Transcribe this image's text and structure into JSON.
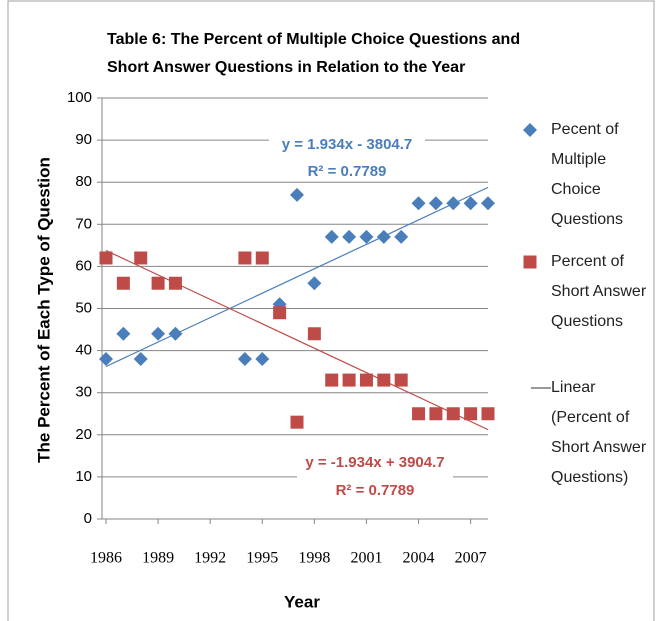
{
  "chart_data": {
    "type": "scatter",
    "title": "Table 6: The Percent of Multiple Choice Questions and Short Answer Questions in Relation to the Year",
    "x_label": "Year",
    "y_label": "The Percent of Each Type of Question",
    "x": [
      1986,
      1987,
      1988,
      1989,
      1990,
      1994,
      1995,
      1996,
      1997,
      1998,
      1999,
      2000,
      2001,
      2002,
      2003,
      2004,
      2005,
      2006,
      2007,
      2008
    ],
    "series": [
      {
        "name": "Pecent of Multiple Choice Questions",
        "color": "#4a7ebb",
        "marker": "diamond",
        "values": [
          38,
          44,
          38,
          44,
          44,
          38,
          38,
          51,
          77,
          56,
          67,
          67,
          67,
          67,
          67,
          75,
          75,
          75,
          75,
          75
        ]
      },
      {
        "name": "Percent of Short Answer Questions",
        "color": "#be4b48",
        "marker": "square",
        "values": [
          62,
          56,
          62,
          56,
          56,
          62,
          62,
          49,
          23,
          44,
          33,
          33,
          33,
          33,
          33,
          25,
          25,
          25,
          25,
          25
        ]
      }
    ],
    "trendlines": [
      {
        "series": 0,
        "color": "#4a7ebb",
        "slope": 1.934,
        "intercept": -3804.7,
        "equation": "y = 1.934x - 3804.7",
        "r2": "R² = 0.7789"
      },
      {
        "series": 1,
        "color": "#be4b48",
        "slope": -1.934,
        "intercept": 3904.7,
        "equation": "y = -1.934x + 3904.7",
        "r2": "R² = 0.7789",
        "name": "Linear (Percent of Short Answer Questions)"
      }
    ],
    "xlim": [
      1986,
      2008
    ],
    "xticks": [
      1986,
      1989,
      1992,
      1995,
      1998,
      2001,
      2004,
      2007
    ],
    "ylim": [
      0,
      100
    ],
    "yticks": [
      0,
      10,
      20,
      30,
      40,
      50,
      60,
      70,
      80,
      90,
      100
    ],
    "grid": true
  }
}
